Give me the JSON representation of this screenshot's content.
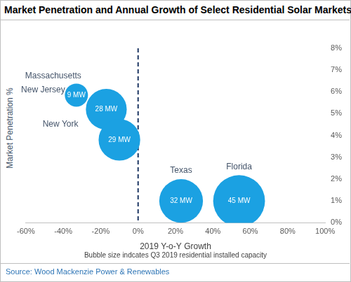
{
  "chart_data": {
    "type": "bubble",
    "title": "Market Penetration and Annual Growth of Select Residential Solar Markets",
    "x_label": "2019 Y-o-Y Growth",
    "y_label": "Market Penetration %",
    "note": "Bubble size indcates Q3 2019 residential installed capacity",
    "source": "Source: Wood Mackenzie Power & Renewables",
    "point_labels": [
      "Massachusetts",
      "New Jersey",
      "New York",
      "Texas",
      "Florida"
    ],
    "x": [
      -33,
      -17,
      -10,
      23,
      54
    ],
    "values": [
      5.85,
      5.2,
      3.8,
      1.0,
      1.0
    ],
    "sizes": [
      9,
      28,
      29,
      32,
      45
    ],
    "size_labels": [
      "9 MW",
      "28 MW",
      "29 MW",
      "32 MW",
      "45 MW"
    ],
    "color": "#1ba1e2",
    "xlim": [
      -60,
      100
    ],
    "xticks": [
      {
        "value": -60,
        "label": "-60%"
      },
      {
        "value": -40,
        "label": "-40%"
      },
      {
        "value": -20,
        "label": "-20%"
      },
      {
        "value": 0,
        "label": "0%"
      },
      {
        "value": 20,
        "label": "20%"
      },
      {
        "value": 40,
        "label": "40%"
      },
      {
        "value": 60,
        "label": "60%"
      },
      {
        "value": 80,
        "label": "80%"
      },
      {
        "value": 100,
        "label": "100%"
      }
    ],
    "ylim": [
      0,
      8
    ],
    "yticks": [
      {
        "value": 0,
        "label": "0%"
      },
      {
        "value": 1,
        "label": "1%"
      },
      {
        "value": 2,
        "label": "2%"
      },
      {
        "value": 3,
        "label": "3%"
      },
      {
        "value": 4,
        "label": "4%"
      },
      {
        "value": 5,
        "label": "5%"
      },
      {
        "value": 6,
        "label": "6%"
      },
      {
        "value": 7,
        "label": "7%"
      },
      {
        "value": 8,
        "label": "8%"
      }
    ],
    "grid": false,
    "reference_lines": [
      {
        "x": 0,
        "line_style": "dashed"
      }
    ]
  }
}
